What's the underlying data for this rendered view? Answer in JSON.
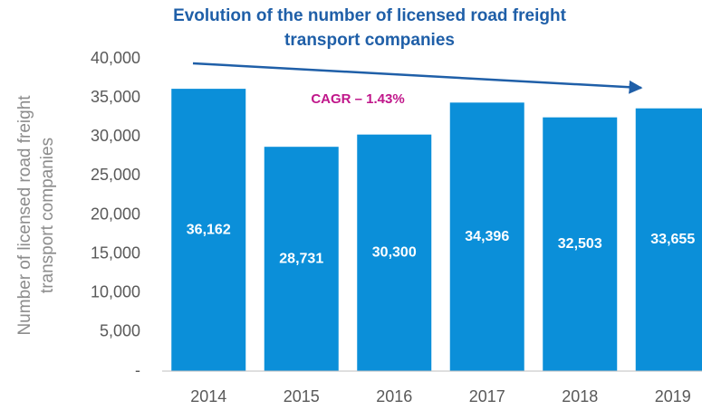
{
  "chart_data": {
    "type": "bar",
    "title": [
      "Evolution of the number of licensed road freight",
      "transport companies"
    ],
    "y_label": [
      "Number of licensed road freight",
      "transport companies"
    ],
    "annotation": "CAGR – 1.43%",
    "categories": [
      "2014",
      "2015",
      "2016",
      "2017",
      "2018",
      "2019"
    ],
    "values": [
      36162,
      28731,
      30300,
      34396,
      32503,
      33655
    ],
    "value_labels": [
      "36,162",
      "28,731",
      "30,300",
      "34,396",
      "32,503",
      "33,655"
    ],
    "color": "#0b8fd9",
    "ylim": [
      0,
      40000
    ],
    "yticks": [
      {
        "value": 0,
        "label": "-"
      },
      {
        "value": 5000,
        "label": "5,000"
      },
      {
        "value": 10000,
        "label": "10,000"
      },
      {
        "value": 15000,
        "label": "15,000"
      },
      {
        "value": 20000,
        "label": "20,000"
      },
      {
        "value": 25000,
        "label": "25,000"
      },
      {
        "value": 30000,
        "label": "30,000"
      },
      {
        "value": 35000,
        "label": "35,000"
      },
      {
        "value": 40000,
        "label": "40,000"
      }
    ],
    "grid": false
  }
}
